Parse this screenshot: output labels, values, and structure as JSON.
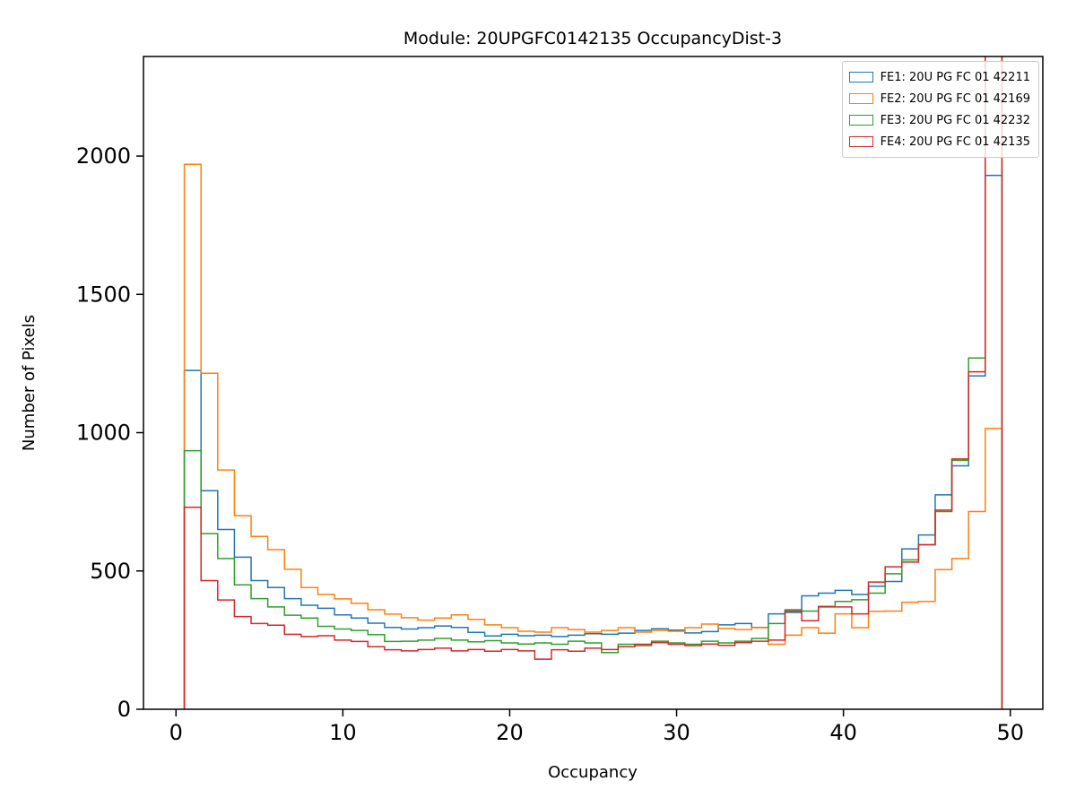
{
  "figure": {
    "background": "#ffffff"
  },
  "chart_data": {
    "type": "step-histogram",
    "title": "Module: 20UPGFC0142135 OccupancyDist-3",
    "xlabel": "Occupancy",
    "ylabel": "Number of Pixels",
    "xlim": [
      -1.95,
      51.95
    ],
    "ylim": [
      0,
      2360
    ],
    "x_ticks": [
      0,
      10,
      20,
      30,
      40,
      50
    ],
    "y_ticks": [
      0,
      500,
      1000,
      1500,
      2000
    ],
    "grid": false,
    "legend_position": "upper right",
    "bin_start": 0.5,
    "bin_width": 1,
    "bin_count": 49,
    "series": [
      {
        "name": "FE1: 20U PG FC 01 42211",
        "color": "#1f77b4",
        "values": [
          1225,
          790,
          650,
          550,
          465,
          440,
          400,
          376,
          365,
          341,
          330,
          311,
          296,
          290,
          295,
          301,
          296,
          278,
          265,
          271,
          266,
          268,
          263,
          268,
          273,
          271,
          275,
          285,
          291,
          286,
          276,
          281,
          305,
          310,
          296,
          345,
          350,
          410,
          420,
          430,
          415,
          445,
          462,
          580,
          630,
          775,
          880,
          1205,
          1930
        ]
      },
      {
        "name": "FE2: 20U PG FC 01 42169",
        "color": "#ff7f0e",
        "values": [
          1970,
          1215,
          865,
          700,
          625,
          577,
          506,
          440,
          415,
          399,
          383,
          360,
          344,
          331,
          322,
          330,
          341,
          325,
          305,
          295,
          282,
          279,
          295,
          288,
          279,
          285,
          295,
          279,
          285,
          282,
          295,
          308,
          292,
          288,
          295,
          235,
          268,
          295,
          275,
          345,
          295,
          354,
          355,
          387,
          390,
          505,
          545,
          715,
          1015
        ]
      },
      {
        "name": "FE3: 20U PG FC 01 42232",
        "color": "#2ca02c",
        "values": [
          935,
          635,
          545,
          450,
          400,
          370,
          340,
          330,
          300,
          290,
          285,
          270,
          245,
          246,
          250,
          256,
          250,
          244,
          248,
          240,
          236,
          240,
          235,
          246,
          240,
          205,
          235,
          230,
          246,
          240,
          235,
          246,
          240,
          246,
          256,
          310,
          360,
          355,
          372,
          390,
          396,
          420,
          490,
          540,
          595,
          715,
          900,
          1270,
          2600
        ]
      },
      {
        "name": "FE4: 20U PG FC 01 42135",
        "color": "#d62728",
        "values": [
          730,
          465,
          395,
          335,
          310,
          304,
          271,
          263,
          266,
          250,
          245,
          226,
          215,
          211,
          216,
          221,
          211,
          216,
          210,
          216,
          211,
          181,
          215,
          210,
          221,
          216,
          226,
          235,
          241,
          235,
          230,
          236,
          231,
          241,
          246,
          250,
          355,
          320,
          370,
          370,
          345,
          460,
          515,
          532,
          595,
          720,
          905,
          1220,
          2600
        ]
      }
    ]
  }
}
